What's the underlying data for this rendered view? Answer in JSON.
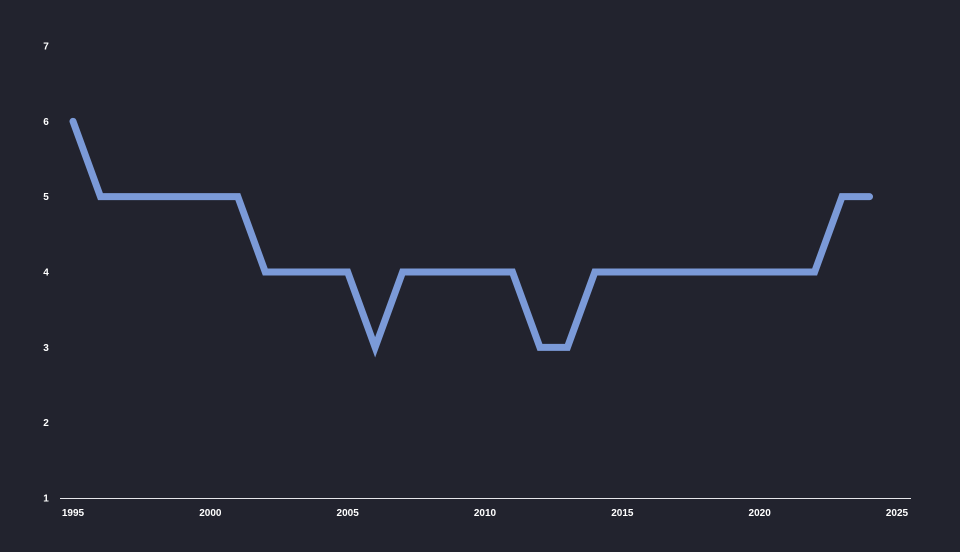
{
  "colors": {
    "background": "#22232e",
    "line": "#7b9ad8",
    "text": "#ffffff",
    "axis": "#e6e6ea"
  },
  "chart_data": {
    "type": "line",
    "title": "",
    "xlabel": "",
    "ylabel": "",
    "xlim": [
      1995,
      2025
    ],
    "ylim": [
      1,
      7
    ],
    "x_ticks": [
      1995,
      2000,
      2005,
      2010,
      2015,
      2020,
      2025
    ],
    "y_ticks": [
      1,
      2,
      3,
      4,
      5,
      6,
      7
    ],
    "grid": false,
    "legend": "none",
    "series": [
      {
        "x": [
          1995,
          1996,
          1997,
          1998,
          1999,
          2000,
          2001,
          2002,
          2003,
          2004,
          2005,
          2006,
          2007,
          2008,
          2009,
          2010,
          2011,
          2012,
          2013,
          2014,
          2015,
          2016,
          2017,
          2018,
          2019,
          2020,
          2021,
          2022,
          2023,
          2024
        ],
        "values": [
          6,
          5,
          5,
          5,
          5,
          5,
          5,
          4,
          4,
          4,
          4,
          3,
          4,
          4,
          4,
          4,
          4,
          3,
          3,
          4,
          4,
          4,
          4,
          4,
          4,
          4,
          4,
          4,
          5,
          5
        ]
      }
    ]
  }
}
